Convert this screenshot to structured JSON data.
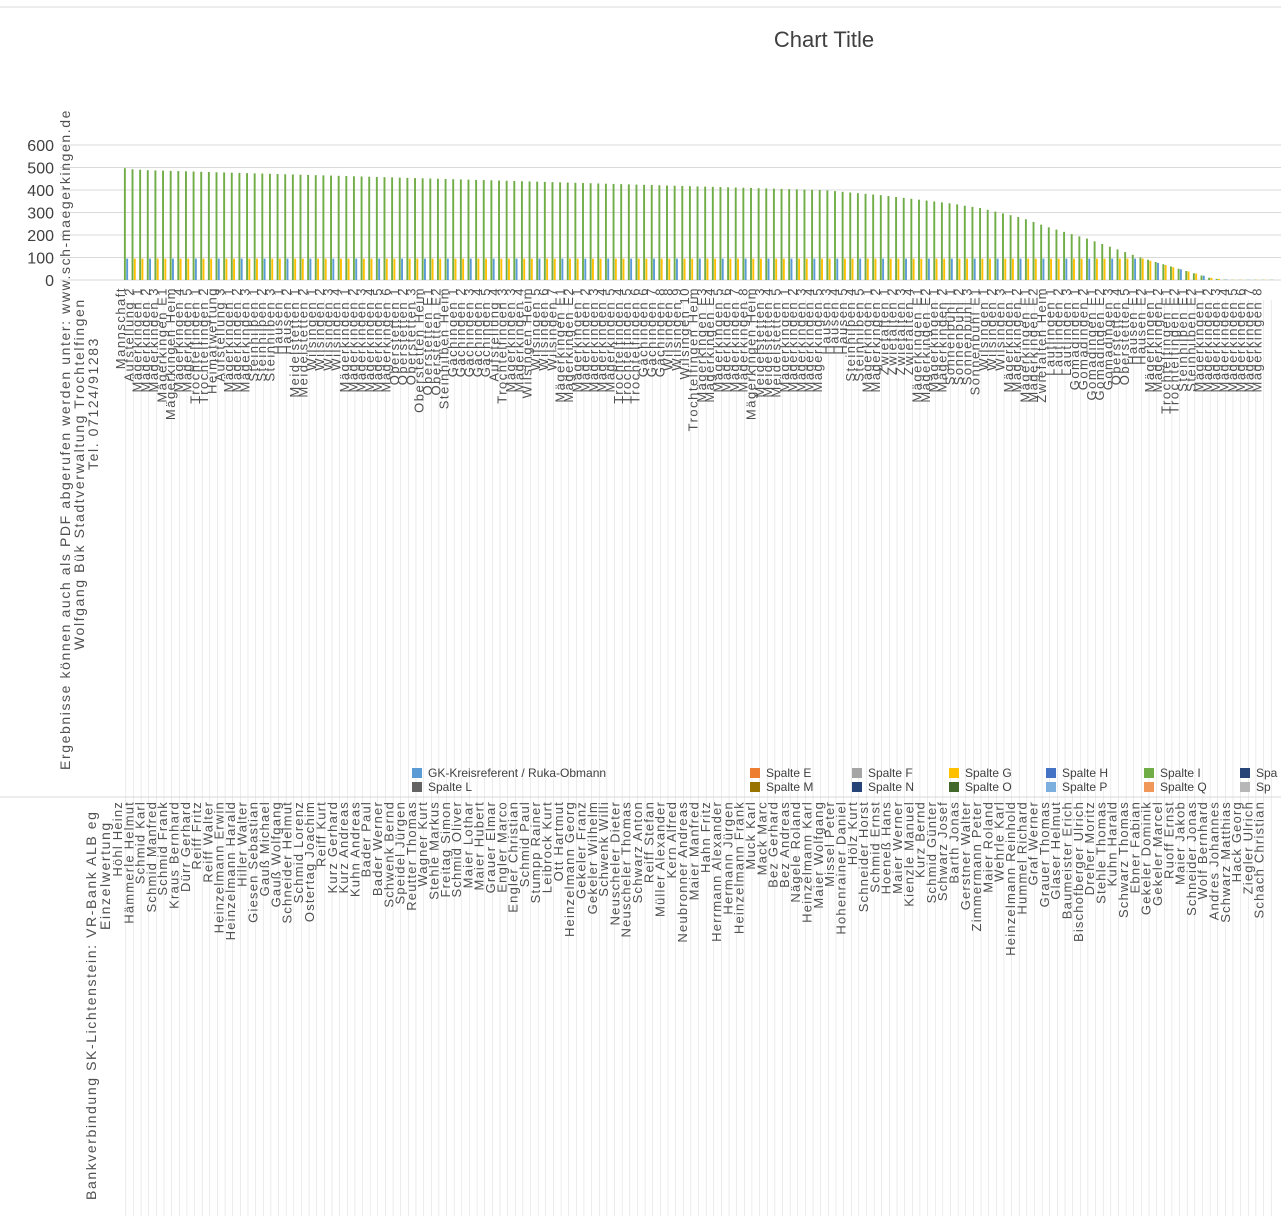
{
  "chart_data": {
    "type": "bar",
    "title": "Chart Title",
    "ylim": [
      0,
      600
    ],
    "yticks": [
      "0",
      "100",
      "200",
      "300",
      "400",
      "500",
      "600"
    ],
    "grid": true,
    "legend_position": "bottom",
    "legend": [
      {
        "name": "GK-Kreisreferent  /  Ruka-Obmann",
        "color": "#5b9bd5"
      },
      {
        "name": "Spalte E",
        "color": "#ed7d31"
      },
      {
        "name": "Spalte F",
        "color": "#a5a5a5"
      },
      {
        "name": "Spalte G",
        "color": "#ffc000"
      },
      {
        "name": "Spalte H",
        "color": "#4472c4"
      },
      {
        "name": "Spalte I",
        "color": "#70ad47"
      },
      {
        "name": "Spa",
        "color": "#264478"
      },
      {
        "name": "Spalte L",
        "color": "#636363"
      },
      {
        "name": "Spalte M",
        "color": "#997300"
      },
      {
        "name": "Spalte N",
        "color": "#264478"
      },
      {
        "name": "Spalte O",
        "color": "#43682b"
      },
      {
        "name": "Spalte P",
        "color": "#7cafdd"
      },
      {
        "name": "Spalte Q",
        "color": "#f1975a"
      },
      {
        "name": "Sp",
        "color": "#b7b7b7"
      }
    ],
    "totals": [
      497,
      492,
      490,
      488,
      487,
      486,
      485,
      484,
      483,
      482,
      481,
      480,
      479,
      478,
      477,
      476,
      475,
      474,
      473,
      472,
      471,
      470,
      469,
      468,
      467,
      466,
      465,
      464,
      463,
      462,
      461,
      460,
      459,
      458,
      457,
      456,
      455,
      454,
      453,
      452,
      451,
      450,
      449,
      448,
      447,
      446,
      445,
      444,
      443,
      442,
      441,
      440,
      439,
      438,
      437,
      436,
      435,
      434,
      433,
      432,
      431,
      430,
      429,
      428,
      427,
      426,
      425,
      424,
      423,
      422,
      421,
      420,
      419,
      418,
      417,
      416,
      415,
      414,
      413,
      412,
      411,
      410,
      409,
      408,
      407,
      406,
      405,
      404,
      403,
      402,
      401,
      400,
      398,
      395,
      392,
      389,
      386,
      383,
      380,
      377,
      373,
      369,
      365,
      361,
      357,
      353,
      349,
      345,
      341,
      336,
      330,
      325,
      320,
      312,
      304,
      296,
      288,
      280,
      270,
      258,
      246,
      234,
      224,
      214,
      204,
      194,
      184,
      172,
      160,
      148,
      136,
      124,
      112,
      100,
      90,
      80,
      70,
      60,
      50,
      40,
      30,
      20,
      10,
      5,
      2,
      1,
      1,
      1,
      1,
      1,
      1
    ],
    "top_labels": [
      "Ergebnisse können auch als PDF abgerufen werden unter: www.sch-maegerkingen.de",
      "Wolfgang Bük Stadtverwaltung Trochtelfingen",
      "Tel. 07124/91283"
    ],
    "bottom_labels": [
      "Bankverbindung SK-Lichtenstein: VR-Bank ALB eg",
      "Einzelwertung"
    ],
    "categories": [
      "Mannschaft",
      "Aufstellung 2",
      "Mägerkingen 1",
      "Mägerkingen 2",
      "Mägerkingen 3",
      "Mägerkingen E1",
      "Mägerkingen Heim",
      "Mägerkingen 4",
      "Mägerkingen 5",
      "Trochtelfingen 1",
      "Trochtelfingen 2",
      "Heimatwertung",
      "Aufstellung 3",
      "Mägerkingen 1",
      "Mägerkingen 2",
      "Mägerkingen 3",
      "Steinhilben 1",
      "Steinhilben 2",
      "Steinhilben 3",
      "Hausen 1",
      "Hausen 2",
      "Meidelstetten 1",
      "Meidelstetten 2",
      "Wilsingen 1",
      "Wilsingen 2",
      "Wilsingen 3",
      "Wilsingen 4",
      "Mägerkingen 1",
      "Mägerkingen 2",
      "Mägerkingen 3",
      "Mägerkingen 4",
      "Mägerkingen 5",
      "Mägerkingen 6",
      "Oberstetten 1",
      "Oberstetten 2",
      "Oberstetten 3",
      "Oberstetten Heim",
      "Oberstetten E1",
      "Oberstetten E2",
      "Steinhilben Heim",
      "Gächingen 1",
      "Gächingen 2",
      "Gächingen 3",
      "Gächingen 4",
      "Gächingen 5",
      "Aufstellung 4",
      "Trochtelfingen 3",
      "Mägerkingen 3",
      "Mägerkingen 4",
      "Wilsingen Heim",
      "Wilsingen 5",
      "Wilsingen 6",
      "Wilsingen 7",
      "Mägerkingen E1",
      "Mägerkingen E2",
      "Mägerkingen 1",
      "Mägerkingen 2",
      "Mägerkingen 3",
      "Mägerkingen 4",
      "Mägerkingen 5",
      "Trochtelfingen 4",
      "Trochtelfingen 5",
      "Trochtelfingen 6",
      "Gächingen 6",
      "Gächingen 7",
      "Gächingen 8",
      "Wilsingen 8",
      "Wilsingen 9",
      "Wilsingen 10",
      "Trochtelfingen Heim",
      "Mägerkingen E3",
      "Mägerkingen E4",
      "Mägerkingen 5",
      "Mägerkingen 6",
      "Mägerkingen 7",
      "Mägerkingen 8",
      "Mägerkingen Heim",
      "Meidelstetten 3",
      "Meidelstetten 4",
      "Meidelstetten 5",
      "Mägerkingen 1",
      "Mägerkingen 2",
      "Mägerkingen 3",
      "Mägerkingen 4",
      "Mägerkingen 5",
      "Hausen 3",
      "Hausen 4",
      "Hausen 5",
      "Steinhilben 4",
      "Steinhilben 5",
      "Mägerkingen 1",
      "Mägerkingen 2",
      "Zwiefalten 1",
      "Zwiefalten 2",
      "Zwiefalten 3",
      "Zwiefalten 4",
      "Mägerkingen E1",
      "Mägerkingen E2",
      "Mägerkingen 1",
      "Mägerkingen 2",
      "Sonnenbühl 1",
      "Sonnenbühl 2",
      "Sonnenbühl 3",
      "Sonnenbühl E1",
      "Wilsingen 1",
      "Wilsingen 2",
      "Wilsingen 3",
      "Mägerkingen 1",
      "Mägerkingen 2",
      "Mägerkingen E1",
      "Mägerkingen E2",
      "Zwiefalten Heim",
      "Lautlingen 1",
      "Lautlingen 2",
      "Lautlingen 3",
      "Gomadingen 1",
      "Gomadingen 2",
      "Gomadingen E1",
      "Gomadingen E2",
      "Gomadingen 3",
      "Oberstetten 4",
      "Oberstetten 5",
      "Hausen E1",
      "Hausen E2",
      "Mägerkingen 1",
      "Mägerkingen 2",
      "Trochtelfingen E1",
      "Trochtelfingen E2",
      "Steinhilben E1",
      "Steinhilben E2",
      "Mägerkingen 1",
      "Mägerkingen 2",
      "Mägerkingen 3",
      "Mägerkingen 4",
      "Mägerkingen 5",
      "Mägerkingen 6",
      "Mägerkingen 7",
      "Mägerkingen 8"
    ],
    "names": [
      "Höhl Heinz",
      "Hämmerle Helmut",
      "Schmid Karl",
      "Schmid Manfred",
      "Schmid Frank",
      "Kraus Bernhard",
      "Dürr Gerhard",
      "Reiff Fritz",
      "Reiff Walter",
      "Heinzelmann Erwin",
      "Heinzelmann Harald",
      "Hiller Walter",
      "Giesen Sebastian",
      "Gauß Michael",
      "Gauß Wolfgang",
      "Schneider Helmut",
      "Schmid Lorenz",
      "Ostertag Joachim",
      "Reiff Kurt",
      "Kurz Gerhard",
      "Kurz Andreas",
      "Kuhn Andreas",
      "Bader Paul",
      "Bader Werner",
      "Schwenk Bernd",
      "Speidel Jürgen",
      "Reutter Thomas",
      "Wagner Kurt",
      "Stehle Markus",
      "Freitag Simon",
      "Schmid Oliver",
      "Maier Lothar",
      "Maier Hubert",
      "Grauer Elmar",
      "Engler Marco",
      "Engler Christian",
      "Schmid Paul",
      "Stumpp Rainer",
      "Leibrock Kurt",
      "Ott Hartmut",
      "Heinzelmann Georg",
      "Gekeler Franz",
      "Gekeler Wilhelm",
      "Schwenk Willi",
      "Neuscheler Dieter",
      "Neuscheler Thomas",
      "Schwarz Anton",
      "Reiff Stefan",
      "Müller Alexander",
      "Kern Alfred",
      "Neubronner Andreas",
      "Maier Manfred",
      "Hahn Fritz",
      "Herrmann Alexander",
      "Hermann Jürgen",
      "Heinzelmann Frank",
      "Muck Karl",
      "Mack Marc",
      "Bez Gerhard",
      "Bez Andreas",
      "Nägele Roland",
      "Heinzelmann Karl",
      "Maier Wolfgang",
      "Missel Peter",
      "Hohenrainer Daniel",
      "Hölz Kurt",
      "Schneider Horst",
      "Schmid Ernst",
      "Hoeneß Hans",
      "Maier Werner",
      "Kienzle Manuel",
      "Kurz Bernd",
      "Schmid Günter",
      "Schwarz Josef",
      "Barth Jonas",
      "Gerstner Walter",
      "Zimmermann Peter",
      "Maier Roland",
      "Wehrle Karl",
      "Heinzelmann Reinhold",
      "Hummel Richard",
      "Graf Werner",
      "Grauer Thomas",
      "Glaser Helmut",
      "Baumeister Erich",
      "Bischofberger Ulrich",
      "Dreher Moritz",
      "Stehle Thomas",
      "Kuhn Harald",
      "Schwarz Thomas",
      "Ebner Fabian",
      "Gekeler Dominik",
      "Gekeler Marcel",
      "Ruoff Ernst",
      "Maier Jakob",
      "Schneider Jonas",
      "Wolf Bernhard",
      "Andres Johannes",
      "Schwarz Matthias",
      "Hack Georg",
      "Ziegler Ulrich",
      "Schach Christian"
    ]
  }
}
